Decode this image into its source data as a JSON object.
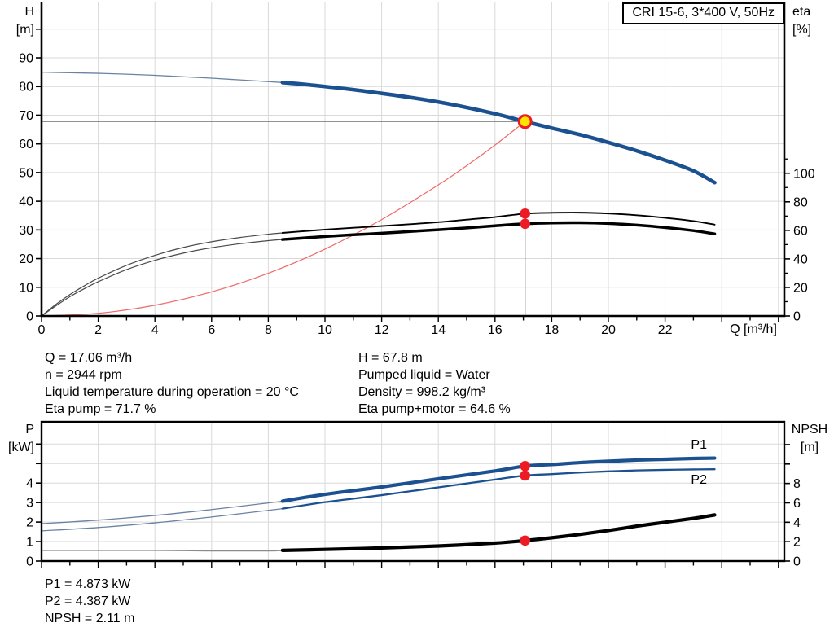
{
  "title_box": {
    "text": "CRI 15-6, 3*400 V, 50Hz"
  },
  "colors": {
    "curve_blue": "#1c5191",
    "curve_blue_thin": "#6b83a2",
    "curve_label_blue": "#2e74b5",
    "eta_black": "#000000",
    "thin_gray": "#4a4a4a",
    "npsh_thin": "#8a8a8a",
    "system_red": "#ef6a6a",
    "marker_red": "#ed1c24",
    "marker_yellow": "#ffe400",
    "grid": "#d9d9d9",
    "crosshair": "#6f6f6f"
  },
  "axis_corner_labels": {
    "h": "H",
    "h_unit": "[m]",
    "eta": "eta",
    "eta_unit": "[%]",
    "p": "P",
    "p_unit": "[kW]",
    "npsh": "NPSH",
    "npsh_unit": "[m]",
    "q": "Q [m³/h]"
  },
  "chart_data": [
    {
      "id": "hq-eta-chart",
      "type": "line",
      "title": "CRI 15-6, 3*400 V, 50Hz",
      "x_axis": {
        "label": "Q [m³/h]",
        "range": [
          0,
          26.2
        ],
        "major_ticks": [
          0,
          2,
          4,
          6,
          8,
          10,
          12,
          14,
          16,
          18,
          20,
          22
        ],
        "minor_step": 1
      },
      "y_left": {
        "label": "H",
        "unit": "[m]",
        "range": [
          0,
          109
        ],
        "major_ticks": [
          0,
          10,
          20,
          30,
          40,
          50,
          60,
          70,
          80,
          90
        ],
        "unlabeled_ticks": [
          100
        ]
      },
      "y_right": {
        "label": "eta",
        "unit": "[%]",
        "major_ticks": [
          0,
          20,
          40,
          60,
          80,
          100
        ],
        "minor_ticks": [
          10,
          30,
          50,
          70,
          90,
          110
        ]
      },
      "grid": true,
      "duty_point": {
        "q": 17.06,
        "h": 67.8,
        "eta_pump": 71.7,
        "eta_pump_motor": 64.6
      },
      "series": [
        {
          "id": "system",
          "name": "system curve",
          "axis": "H",
          "style": "system",
          "split_q": null,
          "points": [
            [
              0,
              0
            ],
            [
              2,
              0.93
            ],
            [
              4,
              3.73
            ],
            [
              6,
              8.39
            ],
            [
              8,
              14.9
            ],
            [
              10,
              23.3
            ],
            [
              12,
              33.6
            ],
            [
              14,
              45.7
            ],
            [
              15,
              52.4
            ],
            [
              16,
              59.6
            ],
            [
              17.06,
              67.8
            ]
          ]
        },
        {
          "id": "head",
          "name": "H",
          "axis": "H",
          "style": "head",
          "split_q": 8.5,
          "points": [
            [
              0,
              85
            ],
            [
              1,
              84.8
            ],
            [
              2,
              84.6
            ],
            [
              3,
              84.3
            ],
            [
              4,
              83.9
            ],
            [
              5,
              83.4
            ],
            [
              6,
              82.9
            ],
            [
              7,
              82.3
            ],
            [
              8,
              81.7
            ],
            [
              8.5,
              81.4
            ],
            [
              9,
              81.0
            ],
            [
              10,
              80.0
            ],
            [
              11,
              78.9
            ],
            [
              12,
              77.6
            ],
            [
              13,
              76.2
            ],
            [
              14,
              74.6
            ],
            [
              15,
              72.7
            ],
            [
              16,
              70.5
            ],
            [
              17.06,
              67.8
            ],
            [
              18,
              65.5
            ],
            [
              19,
              63.2
            ],
            [
              20,
              60.5
            ],
            [
              21,
              57.6
            ],
            [
              22,
              54.3
            ],
            [
              23,
              50.6
            ],
            [
              23.75,
              46.5
            ]
          ]
        },
        {
          "id": "eta-pump",
          "name": "Eta pump",
          "axis": "eta",
          "style": "eta-thin",
          "split_q": 8.5,
          "points": [
            [
              0,
              0
            ],
            [
              0.5,
              8
            ],
            [
              1,
              15
            ],
            [
              1.5,
              21
            ],
            [
              2,
              26.5
            ],
            [
              3,
              35.5
            ],
            [
              4,
              42.5
            ],
            [
              5,
              48
            ],
            [
              6,
              52
            ],
            [
              7,
              55
            ],
            [
              8,
              57.3
            ],
            [
              8.5,
              58.2
            ],
            [
              9,
              59
            ],
            [
              10,
              60.5
            ],
            [
              11,
              61.8
            ],
            [
              12,
              63
            ],
            [
              13,
              64.3
            ],
            [
              14,
              65.7
            ],
            [
              15,
              67.5
            ],
            [
              16,
              69.3
            ],
            [
              17.06,
              71.7
            ],
            [
              18,
              72.3
            ],
            [
              19,
              72.4
            ],
            [
              20,
              71.8
            ],
            [
              21,
              70.6
            ],
            [
              22,
              68.8
            ],
            [
              23,
              66.5
            ],
            [
              23.75,
              64
            ]
          ]
        },
        {
          "id": "eta-pump-motor",
          "name": "Eta pump+motor",
          "axis": "eta",
          "style": "eta-thick",
          "split_q": 8.5,
          "points": [
            [
              0,
              0
            ],
            [
              0.5,
              7
            ],
            [
              1,
              13.5
            ],
            [
              1.5,
              19
            ],
            [
              2,
              24
            ],
            [
              3,
              32.5
            ],
            [
              4,
              39
            ],
            [
              5,
              44
            ],
            [
              6,
              47.8
            ],
            [
              7,
              50.6
            ],
            [
              8,
              52.8
            ],
            [
              8.5,
              53.6
            ],
            [
              9,
              54.3
            ],
            [
              10,
              55.7
            ],
            [
              11,
              56.9
            ],
            [
              12,
              58
            ],
            [
              13,
              59.2
            ],
            [
              14,
              60.4
            ],
            [
              15,
              61.7
            ],
            [
              16,
              63.2
            ],
            [
              17.06,
              64.6
            ],
            [
              18,
              65.2
            ],
            [
              19,
              65.3
            ],
            [
              20,
              64.8
            ],
            [
              21,
              63.7
            ],
            [
              22,
              62
            ],
            [
              23,
              59.8
            ],
            [
              23.75,
              57.5
            ]
          ]
        }
      ]
    },
    {
      "id": "power-npsh-chart",
      "type": "line",
      "x_axis": {
        "range": [
          0,
          26.2
        ],
        "minor_step": 1
      },
      "y_left": {
        "label": "P",
        "unit": "[kW]",
        "major_ticks": [
          0,
          1,
          2,
          3,
          4
        ],
        "unlabeled_ticks": [
          5,
          6
        ]
      },
      "y_right": {
        "label": "NPSH",
        "unit": "[m]",
        "major_ticks": [
          0,
          2,
          4,
          6,
          8
        ],
        "unlabeled_ticks": [
          10,
          12
        ]
      },
      "grid": true,
      "duty_point": {
        "q": 17.06,
        "p1": 4.873,
        "p2": 4.387,
        "npsh": 2.11
      },
      "series": [
        {
          "id": "p1",
          "name": "P1",
          "axis": "P",
          "style": "power-p1",
          "split_q": 8.5,
          "label": "P1",
          "points": [
            [
              0,
              1.92
            ],
            [
              2,
              2.1
            ],
            [
              4,
              2.34
            ],
            [
              6,
              2.64
            ],
            [
              8,
              2.98
            ],
            [
              8.5,
              3.07
            ],
            [
              10,
              3.42
            ],
            [
              12,
              3.8
            ],
            [
              14,
              4.22
            ],
            [
              16,
              4.62
            ],
            [
              17.06,
              4.873
            ],
            [
              18,
              4.95
            ],
            [
              19,
              5.05
            ],
            [
              20,
              5.12
            ],
            [
              21,
              5.18
            ],
            [
              22,
              5.22
            ],
            [
              23,
              5.26
            ],
            [
              23.75,
              5.28
            ]
          ]
        },
        {
          "id": "p2",
          "name": "P2",
          "axis": "P",
          "style": "power-p2",
          "split_q": 8.5,
          "label": "P2",
          "points": [
            [
              0,
              1.55
            ],
            [
              2,
              1.72
            ],
            [
              4,
              1.96
            ],
            [
              6,
              2.26
            ],
            [
              8,
              2.6
            ],
            [
              8.5,
              2.69
            ],
            [
              10,
              3.02
            ],
            [
              12,
              3.38
            ],
            [
              14,
              3.78
            ],
            [
              16,
              4.18
            ],
            [
              17.06,
              4.387
            ],
            [
              18,
              4.46
            ],
            [
              19,
              4.54
            ],
            [
              20,
              4.6
            ],
            [
              21,
              4.65
            ],
            [
              22,
              4.68
            ],
            [
              23,
              4.7
            ],
            [
              23.75,
              4.71
            ]
          ]
        },
        {
          "id": "npsh",
          "name": "NPSH",
          "axis": "NPSH",
          "style": "npsh",
          "split_q": 8.5,
          "points": [
            [
              0,
              1.1
            ],
            [
              2,
              1.1
            ],
            [
              4,
              1.1
            ],
            [
              6,
              1.05
            ],
            [
              8,
              1.05
            ],
            [
              8.5,
              1.1
            ],
            [
              10,
              1.2
            ],
            [
              12,
              1.35
            ],
            [
              14,
              1.55
            ],
            [
              16,
              1.85
            ],
            [
              17.06,
              2.11
            ],
            [
              18,
              2.4
            ],
            [
              19,
              2.75
            ],
            [
              20,
              3.15
            ],
            [
              21,
              3.6
            ],
            [
              22,
              4.0
            ],
            [
              23,
              4.4
            ],
            [
              23.75,
              4.75
            ]
          ]
        }
      ]
    }
  ],
  "annotations": {
    "top_left": [
      "Q = 17.06 m³/h",
      "n = 2944 rpm",
      "Liquid temperature during operation = 20 °C",
      "Eta pump = 71.7 %"
    ],
    "top_right": [
      "H = 67.8 m",
      "Pumped liquid = Water",
      "Density = 998.2 kg/m³",
      "Eta pump+motor = 64.6 %"
    ],
    "bottom": [
      "P1 = 4.873 kW",
      "P2 = 4.387 kW",
      "NPSH = 2.11 m"
    ]
  }
}
